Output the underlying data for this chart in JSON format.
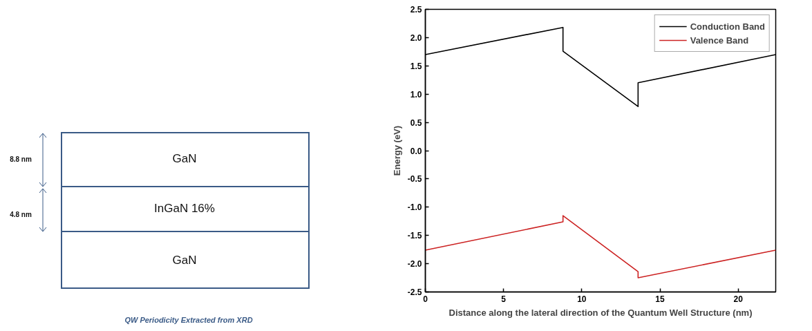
{
  "chart_data": [
    {
      "type": "other",
      "annotations": [
        "8.8 nm",
        "4.8 nm",
        "GaN",
        "InGaN 16%",
        "GaN",
        "QW Periodicity Extracted from XRD"
      ]
    },
    {
      "type": "line",
      "xlabel": "Distance along the lateral direction of the Quantum Well Structure (nm)",
      "ylabel": "Energy (eV)",
      "xlim": [
        0,
        22.4
      ],
      "ylim": [
        -2.5,
        2.5
      ],
      "xticks": [
        0,
        5,
        10,
        15,
        20
      ],
      "yticks": [
        {
          "value": -2.5,
          "label": "-2.5"
        },
        {
          "value": -2,
          "label": "-2.0"
        },
        {
          "value": -1.5,
          "label": "-1.5"
        },
        {
          "value": -1,
          "label": "-1.0"
        },
        {
          "value": -0.5,
          "label": "-0.5"
        },
        {
          "value": 0,
          "label": "0.0"
        },
        {
          "value": 0.5,
          "label": "0.5"
        },
        {
          "value": 1,
          "label": "1.0"
        },
        {
          "value": 1.5,
          "label": "1.5"
        },
        {
          "value": 2,
          "label": "2.0"
        },
        {
          "value": 2.5,
          "label": "2.5"
        }
      ],
      "grid": false,
      "legend": "top right",
      "line_style": "solid",
      "marker": "none",
      "series": [
        {
          "name": "Conduction Band",
          "color": "#000000",
          "x": [
            0,
            8.8,
            8.8,
            13.6,
            13.6,
            22.4
          ],
          "values": [
            1.7,
            2.18,
            1.76,
            0.78,
            1.2,
            1.7
          ]
        },
        {
          "name": "Valence Band",
          "color": "#cc2222",
          "x": [
            0,
            8.8,
            8.8,
            13.6,
            13.6,
            22.4
          ],
          "values": [
            -1.76,
            -1.26,
            -1.15,
            -2.14,
            -2.25,
            -1.76
          ]
        }
      ]
    }
  ]
}
